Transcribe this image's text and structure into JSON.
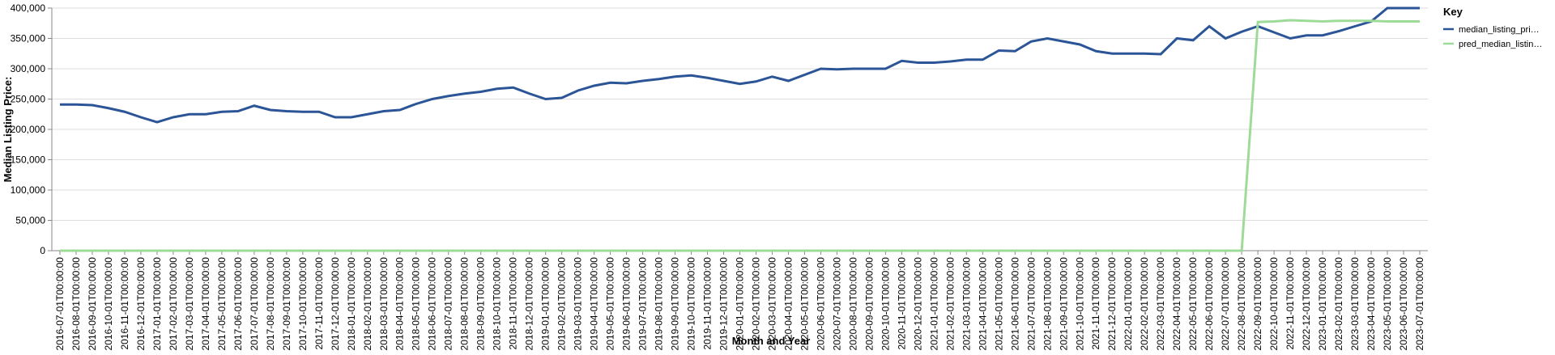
{
  "chart_data": {
    "type": "line",
    "x_label": "Month and Year",
    "y_label": "Median Listing Price:",
    "legend_title": "Key",
    "legend_position": "right",
    "grid": true,
    "categories": [
      "2016-07-01T00:00:00",
      "2016-08-01T00:00:00",
      "2016-09-01T00:00:00",
      "2016-10-01T00:00:00",
      "2016-11-01T00:00:00",
      "2016-12-01T00:00:00",
      "2017-01-01T00:00:00",
      "2017-02-01T00:00:00",
      "2017-03-01T00:00:00",
      "2017-04-01T00:00:00",
      "2017-05-01T00:00:00",
      "2017-06-01T00:00:00",
      "2017-07-01T00:00:00",
      "2017-08-01T00:00:00",
      "2017-09-01T00:00:00",
      "2017-10-01T00:00:00",
      "2017-11-01T00:00:00",
      "2017-12-01T00:00:00",
      "2018-01-01T00:00:00",
      "2018-02-01T00:00:00",
      "2018-03-01T00:00:00",
      "2018-04-01T00:00:00",
      "2018-05-01T00:00:00",
      "2018-06-01T00:00:00",
      "2018-07-01T00:00:00",
      "2018-08-01T00:00:00",
      "2018-09-01T00:00:00",
      "2018-10-01T00:00:00",
      "2018-11-01T00:00:00",
      "2018-12-01T00:00:00",
      "2019-01-01T00:00:00",
      "2019-02-01T00:00:00",
      "2019-03-01T00:00:00",
      "2019-04-01T00:00:00",
      "2019-05-01T00:00:00",
      "2019-06-01T00:00:00",
      "2019-07-01T00:00:00",
      "2019-08-01T00:00:00",
      "2019-09-01T00:00:00",
      "2019-10-01T00:00:00",
      "2019-11-01T00:00:00",
      "2019-12-01T00:00:00",
      "2020-01-01T00:00:00",
      "2020-02-01T00:00:00",
      "2020-03-01T00:00:00",
      "2020-04-01T00:00:00",
      "2020-05-01T00:00:00",
      "2020-06-01T00:00:00",
      "2020-07-01T00:00:00",
      "2020-08-01T00:00:00",
      "2020-09-01T00:00:00",
      "2020-10-01T00:00:00",
      "2020-11-01T00:00:00",
      "2020-12-01T00:00:00",
      "2021-01-01T00:00:00",
      "2021-02-01T00:00:00",
      "2021-03-01T00:00:00",
      "2021-04-01T00:00:00",
      "2021-05-01T00:00:00",
      "2021-06-01T00:00:00",
      "2021-07-01T00:00:00",
      "2021-08-01T00:00:00",
      "2021-09-01T00:00:00",
      "2021-10-01T00:00:00",
      "2021-11-01T00:00:00",
      "2021-12-01T00:00:00",
      "2022-01-01T00:00:00",
      "2022-02-01T00:00:00",
      "2022-03-01T00:00:00",
      "2022-04-01T00:00:00",
      "2022-05-01T00:00:00",
      "2022-06-01T00:00:00",
      "2022-07-01T00:00:00",
      "2022-08-01T00:00:00",
      "2022-09-01T00:00:00",
      "2022-10-01T00:00:00",
      "2022-11-01T00:00:00",
      "2022-12-01T00:00:00",
      "2023-01-01T00:00:00",
      "2023-02-01T00:00:00",
      "2023-03-01T00:00:00",
      "2023-04-01T00:00:00",
      "2023-05-01T00:00:00",
      "2023-06-01T00:00:00",
      "2023-07-01T00:00:00"
    ],
    "series": [
      {
        "name": "median_listing_pri…",
        "color": "#2b5597",
        "values": [
          241000,
          241000,
          240000,
          235000,
          229000,
          220000,
          212000,
          220000,
          225000,
          225000,
          229000,
          230000,
          239000,
          232000,
          230000,
          229000,
          229000,
          220000,
          220000,
          225000,
          230000,
          232000,
          242000,
          250000,
          255000,
          259000,
          262000,
          267000,
          269000,
          259000,
          250000,
          252000,
          264000,
          272000,
          277000,
          276000,
          280000,
          283000,
          287000,
          289000,
          285000,
          280000,
          275000,
          279000,
          287000,
          280000,
          290000,
          300000,
          299000,
          300000,
          300000,
          300000,
          313000,
          310000,
          310000,
          312000,
          315000,
          315000,
          330000,
          329000,
          345000,
          350000,
          345000,
          340000,
          329000,
          325000,
          325000,
          325000,
          324000,
          350000,
          347000,
          370000,
          350000,
          361000,
          370000,
          360000,
          350000,
          355000,
          355000,
          362000,
          370000,
          378000,
          400000,
          400000,
          400000
        ]
      },
      {
        "name": "pred_median_listin…",
        "color": "#9fdb98",
        "values": [
          0,
          0,
          0,
          0,
          0,
          0,
          0,
          0,
          0,
          0,
          0,
          0,
          0,
          0,
          0,
          0,
          0,
          0,
          0,
          0,
          0,
          0,
          0,
          0,
          0,
          0,
          0,
          0,
          0,
          0,
          0,
          0,
          0,
          0,
          0,
          0,
          0,
          0,
          0,
          0,
          0,
          0,
          0,
          0,
          0,
          0,
          0,
          0,
          0,
          0,
          0,
          0,
          0,
          0,
          0,
          0,
          0,
          0,
          0,
          0,
          0,
          0,
          0,
          0,
          0,
          0,
          0,
          0,
          0,
          0,
          0,
          0,
          0,
          0,
          377000,
          378000,
          380000,
          379000,
          378000,
          379000,
          379000,
          379000,
          378000,
          378000,
          378000
        ]
      }
    ],
    "ylim": [
      0,
      400000
    ],
    "yticks": [
      0,
      {
        "value": 50000,
        "label": "50,000"
      },
      {
        "value": 100000,
        "label": "100,000"
      },
      {
        "value": 150000,
        "label": "150,000"
      },
      {
        "value": 200000,
        "label": "200,000"
      },
      {
        "value": 250000,
        "label": "250,000"
      },
      {
        "value": 300000,
        "label": "300,000"
      },
      {
        "value": 350000,
        "label": "350,000"
      },
      {
        "value": 400000,
        "label": "400,000"
      }
    ]
  }
}
